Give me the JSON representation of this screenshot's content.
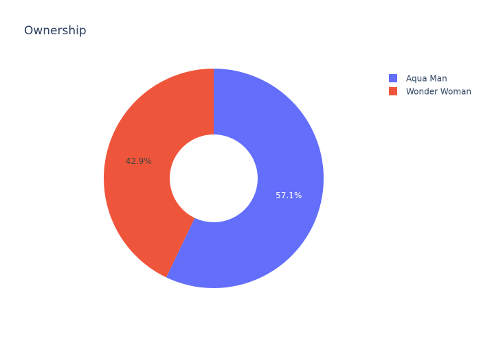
{
  "chart_data": {
    "type": "pie",
    "title": "Ownership",
    "hole": 0.4,
    "legend_position": "top-right",
    "labels": [
      "Aqua Man",
      "Wonder Woman"
    ],
    "values": [
      57.1,
      42.9
    ],
    "percent_labels": [
      "57.1%",
      "42.9%"
    ],
    "colors": [
      "#636efa",
      "#EF553B"
    ],
    "label_text_colors": [
      "#ffffff",
      "#444444"
    ]
  }
}
